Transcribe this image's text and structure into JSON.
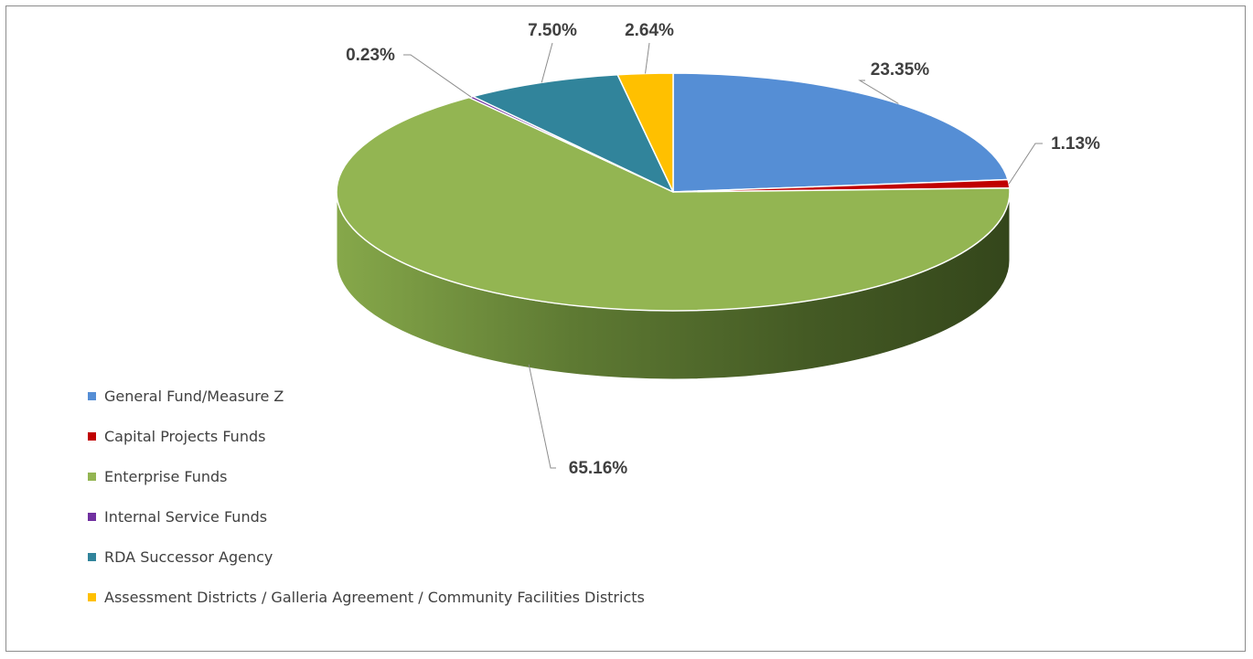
{
  "chart_data": {
    "type": "pie",
    "title": "",
    "style": "3d",
    "legend_position": "bottom-left",
    "series": [
      {
        "name": "General Fund/Measure Z",
        "value": 23.35,
        "label": "23.35%",
        "color": "#558ED5"
      },
      {
        "name": "Capital Projects Funds",
        "value": 1.13,
        "label": "1.13%",
        "color": "#C00000"
      },
      {
        "name": "Enterprise Funds",
        "value": 65.16,
        "label": "65.16%",
        "color": "#93B552"
      },
      {
        "name": "Internal Service Funds",
        "value": 0.23,
        "label": "0.23%",
        "color": "#7030A0"
      },
      {
        "name": "RDA Successor Agency",
        "value": 7.5,
        "label": "7.50%",
        "color": "#31849B"
      },
      {
        "name": "Assessment Districts / Galleria Agreement / Community Facilities Districts",
        "value": 2.64,
        "label": "2.64%",
        "color": "#FFC000"
      }
    ]
  }
}
